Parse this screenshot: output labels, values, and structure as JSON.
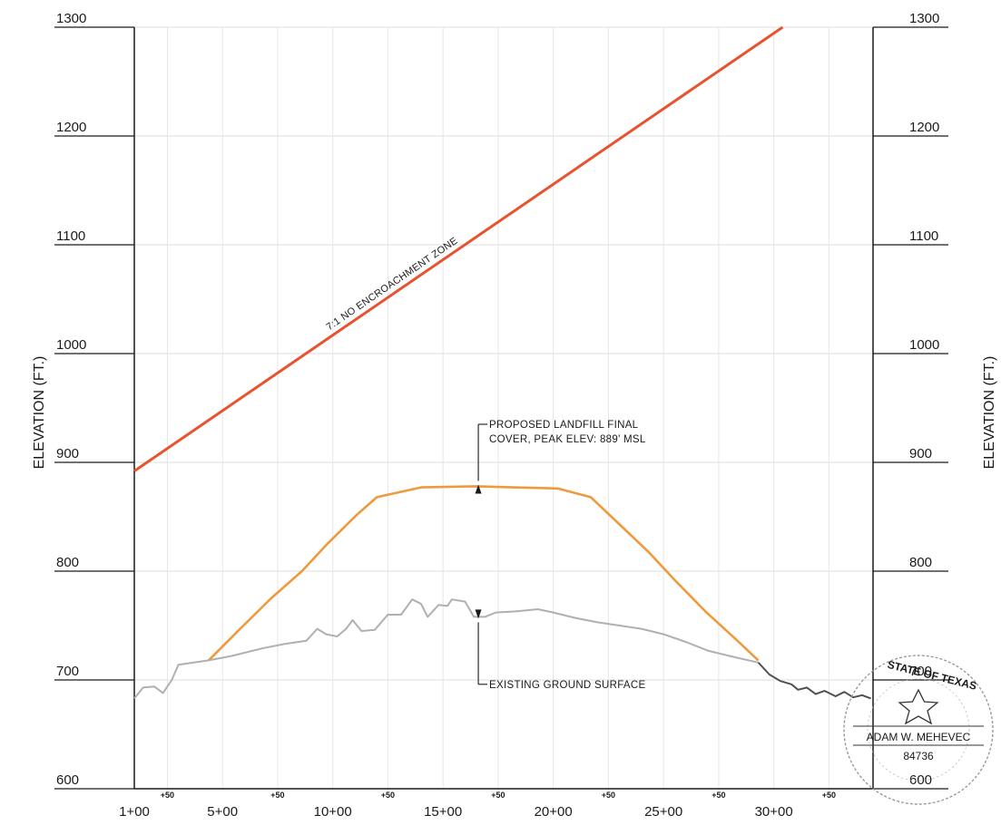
{
  "chart_data": {
    "type": "line",
    "ylabel_left": "ELEVATION (FT.)",
    "ylabel_right": "ELEVATION (FT.)",
    "ylim": [
      600,
      1300
    ],
    "yticks": [
      {
        "value": 600,
        "label": "600"
      },
      {
        "value": 700,
        "label": "700"
      },
      {
        "value": 800,
        "label": "800"
      },
      {
        "value": 900,
        "label": "900"
      },
      {
        "value": 1000,
        "label": "1000"
      },
      {
        "value": 1100,
        "label": "1100"
      },
      {
        "value": 1200,
        "label": "1200"
      },
      {
        "value": 1300,
        "label": "1300"
      }
    ],
    "xlim": [
      0,
      3350
    ],
    "xticks": [
      {
        "value": 0,
        "label": "1+00"
      },
      {
        "value": 400,
        "label": "5+00"
      },
      {
        "value": 900,
        "label": "10+00"
      },
      {
        "value": 1400,
        "label": "15+00"
      },
      {
        "value": 1900,
        "label": "20+00"
      },
      {
        "value": 2400,
        "label": "25+00"
      },
      {
        "value": 2900,
        "label": "30+00"
      }
    ],
    "half_ticks": [
      {
        "value": 150,
        "label": "+50"
      },
      {
        "value": 650,
        "label": "+50"
      },
      {
        "value": 1150,
        "label": "+50"
      },
      {
        "value": 1650,
        "label": "+50"
      },
      {
        "value": 2150,
        "label": "+50"
      },
      {
        "value": 2650,
        "label": "+50"
      },
      {
        "value": 3150,
        "label": "+50"
      }
    ],
    "grid": true,
    "series": [
      {
        "key": "encroachment",
        "color": "#e8532e",
        "label_text": "7:1 NO ENCROACHMENT ZONE",
        "points": [
          [
            0,
            892
          ],
          [
            2940,
            1300
          ]
        ]
      },
      {
        "key": "cover",
        "color": "#ee9a3c",
        "points": [
          [
            337,
            718
          ],
          [
            470,
            745
          ],
          [
            620,
            775
          ],
          [
            760,
            800
          ],
          [
            870,
            824
          ],
          [
            1010,
            852
          ],
          [
            1100,
            868
          ],
          [
            1300,
            877
          ],
          [
            1550,
            878
          ],
          [
            1720,
            877
          ],
          [
            1920,
            876
          ],
          [
            2070,
            868
          ],
          [
            2190,
            845
          ],
          [
            2330,
            818
          ],
          [
            2450,
            792
          ],
          [
            2590,
            763
          ],
          [
            2730,
            737
          ],
          [
            2830,
            718
          ]
        ]
      },
      {
        "key": "ground",
        "color": "#b0b0b0",
        "points": [
          [
            0,
            683
          ],
          [
            40,
            693
          ],
          [
            90,
            694
          ],
          [
            130,
            688
          ],
          [
            170,
            700
          ],
          [
            200,
            714
          ],
          [
            337,
            718
          ],
          [
            440,
            722
          ],
          [
            580,
            729
          ],
          [
            680,
            733
          ],
          [
            780,
            736
          ],
          [
            830,
            747
          ],
          [
            870,
            742
          ],
          [
            920,
            740
          ],
          [
            960,
            747
          ],
          [
            990,
            755
          ],
          [
            1030,
            745
          ],
          [
            1090,
            746
          ],
          [
            1150,
            760
          ],
          [
            1210,
            760
          ],
          [
            1260,
            774
          ],
          [
            1300,
            770
          ],
          [
            1330,
            758
          ],
          [
            1380,
            769
          ],
          [
            1420,
            768
          ],
          [
            1440,
            774
          ],
          [
            1500,
            772
          ],
          [
            1540,
            758
          ],
          [
            1590,
            758
          ],
          [
            1640,
            762
          ],
          [
            1730,
            763
          ],
          [
            1830,
            765
          ],
          [
            1900,
            762
          ],
          [
            2000,
            757
          ],
          [
            2100,
            753
          ],
          [
            2200,
            750
          ],
          [
            2300,
            747
          ],
          [
            2400,
            742
          ],
          [
            2500,
            735
          ],
          [
            2600,
            727
          ],
          [
            2700,
            722
          ],
          [
            2830,
            716
          ]
        ]
      },
      {
        "key": "ground-tail",
        "color": "#505050",
        "points": [
          [
            2830,
            716
          ],
          [
            2880,
            705
          ],
          [
            2930,
            699
          ],
          [
            2980,
            696
          ],
          [
            3010,
            691
          ],
          [
            3050,
            693
          ],
          [
            3090,
            687
          ],
          [
            3130,
            690
          ],
          [
            3180,
            685
          ],
          [
            3220,
            689
          ],
          [
            3260,
            684
          ],
          [
            3300,
            686
          ],
          [
            3340,
            683
          ]
        ]
      }
    ],
    "annotations": [
      {
        "key": "cover",
        "lines": [
          "PROPOSED LANDFILL FINAL",
          "COVER, PEAK ELEV: 889' MSL"
        ]
      },
      {
        "key": "ground",
        "lines": [
          "EXISTING GROUND SURFACE"
        ]
      }
    ]
  },
  "seal": {
    "top_text": "STATE OF TEXAS",
    "name": "ADAM W. MEHEVEC",
    "number": "84736"
  }
}
